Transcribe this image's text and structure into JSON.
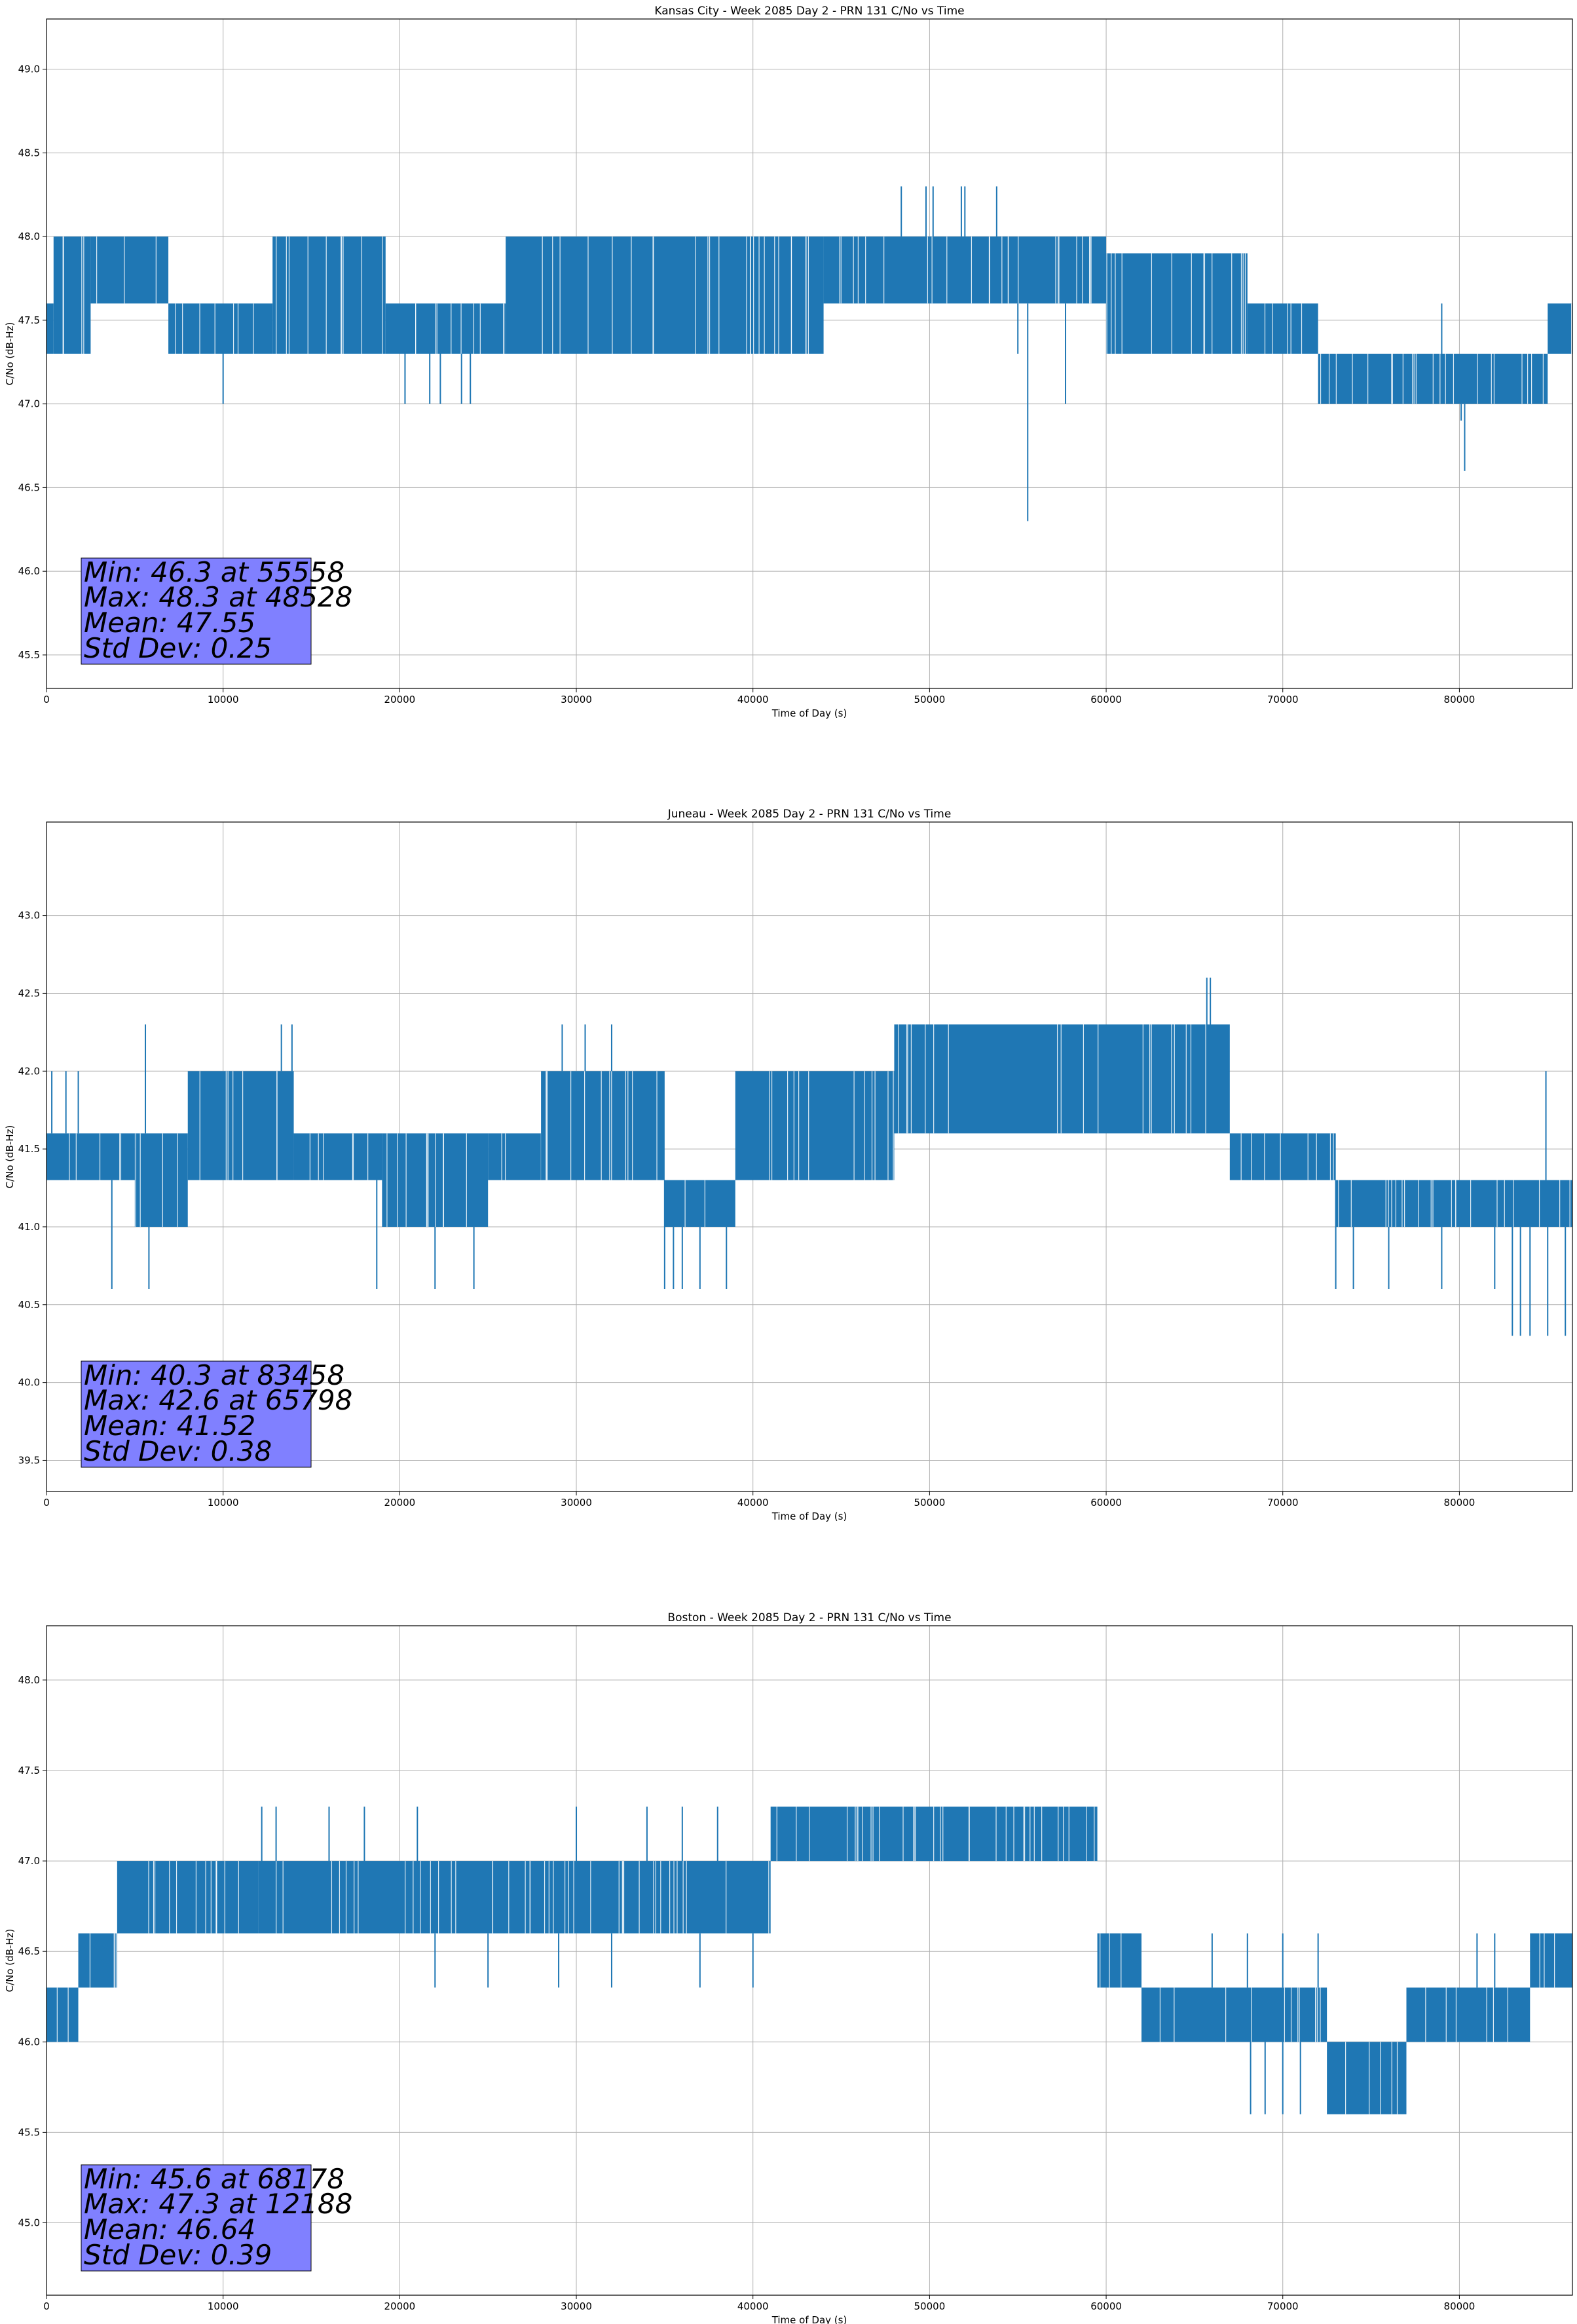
{
  "figure": {
    "colors": {
      "series": "#1f77b4",
      "grid": "#b0b0b0",
      "stats_box": "#8080ff",
      "axes": "#000000",
      "background": "#ffffff"
    }
  },
  "chart_data": [
    {
      "type": "line",
      "title": "Kansas City - Week 2085 Day 2 - PRN 131 C/No vs Time",
      "xlabel": "Time of Day (s)",
      "ylabel": "C/No (dB-Hz)",
      "xlim": [
        0,
        86400
      ],
      "ylim": [
        45.3,
        49.3
      ],
      "xticks": [
        0,
        10000,
        20000,
        30000,
        40000,
        50000,
        60000,
        70000,
        80000
      ],
      "yticks": [
        45.5,
        46.0,
        46.5,
        47.0,
        47.5,
        48.0,
        48.5,
        49.0
      ],
      "grid": true,
      "series": [
        {
          "color": "#1f77b4",
          "bands": [
            {
              "x": [
                0,
                400
              ],
              "lo": 47.3,
              "hi": 47.6
            },
            {
              "x": [
                400,
                2500
              ],
              "lo": 47.3,
              "hi": 48.0
            },
            {
              "x": [
                2500,
                6900
              ],
              "lo": 47.6,
              "hi": 48.0
            },
            {
              "x": [
                6900,
                12800
              ],
              "lo": 47.3,
              "hi": 47.6
            },
            {
              "x": [
                12800,
                19200
              ],
              "lo": 47.3,
              "hi": 48.0
            },
            {
              "x": [
                19200,
                26000
              ],
              "lo": 47.3,
              "hi": 47.6
            },
            {
              "x": [
                26000,
                44000
              ],
              "lo": 47.3,
              "hi": 48.0
            },
            {
              "x": [
                44000,
                60000
              ],
              "lo": 47.6,
              "hi": 48.0
            },
            {
              "x": [
                60000,
                68000
              ],
              "lo": 47.3,
              "hi": 47.9
            },
            {
              "x": [
                68000,
                72000
              ],
              "lo": 47.3,
              "hi": 47.6
            },
            {
              "x": [
                72000,
                85000
              ],
              "lo": 47.0,
              "hi": 47.3
            },
            {
              "x": [
                85000,
                86400
              ],
              "lo": 47.3,
              "hi": 47.6
            }
          ],
          "spikes": [
            {
              "x": 10000,
              "y": 47.0
            },
            {
              "x": 20300,
              "y": 47.0
            },
            {
              "x": 21700,
              "y": 47.0
            },
            {
              "x": 22300,
              "y": 47.0
            },
            {
              "x": 23500,
              "y": 47.0
            },
            {
              "x": 24000,
              "y": 47.0
            },
            {
              "x": 48400,
              "y": 48.3
            },
            {
              "x": 49800,
              "y": 48.3
            },
            {
              "x": 50200,
              "y": 48.3
            },
            {
              "x": 51800,
              "y": 48.3
            },
            {
              "x": 52000,
              "y": 48.3
            },
            {
              "x": 53800,
              "y": 48.3
            },
            {
              "x": 55000,
              "y": 47.3
            },
            {
              "x": 55558,
              "y": 46.3
            },
            {
              "x": 57700,
              "y": 47.0
            },
            {
              "x": 79000,
              "y": 47.6
            },
            {
              "x": 80100,
              "y": 46.9
            },
            {
              "x": 80300,
              "y": 46.6
            }
          ]
        }
      ],
      "stats": [
        "Min: 46.3 at 55558",
        "Max: 48.3 at 48528",
        "Mean: 47.55",
        "Std Dev: 0.25"
      ]
    },
    {
      "type": "line",
      "title": "Juneau - Week 2085 Day 2 - PRN 131 C/No vs Time",
      "xlabel": "Time of Day (s)",
      "ylabel": "C/No (dB-Hz)",
      "xlim": [
        0,
        86400
      ],
      "ylim": [
        39.3,
        43.6
      ],
      "xticks": [
        0,
        10000,
        20000,
        30000,
        40000,
        50000,
        60000,
        70000,
        80000
      ],
      "yticks": [
        39.5,
        40.0,
        40.5,
        41.0,
        41.5,
        42.0,
        42.5,
        43.0
      ],
      "grid": true,
      "series": [
        {
          "color": "#1f77b4",
          "bands": [
            {
              "x": [
                0,
                5000
              ],
              "lo": 41.3,
              "hi": 41.6
            },
            {
              "x": [
                5000,
                8000
              ],
              "lo": 41.0,
              "hi": 41.6
            },
            {
              "x": [
                8000,
                14000
              ],
              "lo": 41.3,
              "hi": 42.0
            },
            {
              "x": [
                14000,
                19000
              ],
              "lo": 41.3,
              "hi": 41.6
            },
            {
              "x": [
                19000,
                25000
              ],
              "lo": 41.0,
              "hi": 41.6
            },
            {
              "x": [
                25000,
                28000
              ],
              "lo": 41.3,
              "hi": 41.6
            },
            {
              "x": [
                28000,
                35000
              ],
              "lo": 41.3,
              "hi": 42.0
            },
            {
              "x": [
                35000,
                39000
              ],
              "lo": 41.0,
              "hi": 41.3
            },
            {
              "x": [
                39000,
                48000
              ],
              "lo": 41.3,
              "hi": 42.0
            },
            {
              "x": [
                48000,
                67000
              ],
              "lo": 41.6,
              "hi": 42.3
            },
            {
              "x": [
                67000,
                73000
              ],
              "lo": 41.3,
              "hi": 41.6
            },
            {
              "x": [
                73000,
                86400
              ],
              "lo": 41.0,
              "hi": 41.3
            }
          ],
          "spikes": [
            {
              "x": 300,
              "y": 42.0
            },
            {
              "x": 1100,
              "y": 42.0
            },
            {
              "x": 1800,
              "y": 42.0
            },
            {
              "x": 3700,
              "y": 40.6
            },
            {
              "x": 5600,
              "y": 42.3
            },
            {
              "x": 5800,
              "y": 40.6
            },
            {
              "x": 13300,
              "y": 42.3
            },
            {
              "x": 13900,
              "y": 42.3
            },
            {
              "x": 18700,
              "y": 40.6
            },
            {
              "x": 22000,
              "y": 40.6
            },
            {
              "x": 24200,
              "y": 40.6
            },
            {
              "x": 29200,
              "y": 42.3
            },
            {
              "x": 30500,
              "y": 42.3
            },
            {
              "x": 32000,
              "y": 42.3
            },
            {
              "x": 35000,
              "y": 40.6
            },
            {
              "x": 35500,
              "y": 40.6
            },
            {
              "x": 36000,
              "y": 40.6
            },
            {
              "x": 37000,
              "y": 40.6
            },
            {
              "x": 38500,
              "y": 40.6
            },
            {
              "x": 65700,
              "y": 42.6
            },
            {
              "x": 65900,
              "y": 42.6
            },
            {
              "x": 73000,
              "y": 40.6
            },
            {
              "x": 74000,
              "y": 40.6
            },
            {
              "x": 76000,
              "y": 40.6
            },
            {
              "x": 79000,
              "y": 40.6
            },
            {
              "x": 82000,
              "y": 40.6
            },
            {
              "x": 83000,
              "y": 40.3
            },
            {
              "x": 83458,
              "y": 40.3
            },
            {
              "x": 84000,
              "y": 40.3
            },
            {
              "x": 85000,
              "y": 40.3
            },
            {
              "x": 86000,
              "y": 40.3
            },
            {
              "x": 84900,
              "y": 42.0
            }
          ]
        }
      ],
      "stats": [
        "Min: 40.3 at 83458",
        "Max: 42.6 at 65798",
        "Mean: 41.52",
        "Std Dev: 0.38"
      ]
    },
    {
      "type": "line",
      "title": "Boston - Week 2085 Day 2 - PRN 131 C/No vs Time",
      "xlabel": "Time of Day (s)",
      "ylabel": "C/No (dB-Hz)",
      "xlim": [
        0,
        86400
      ],
      "ylim": [
        44.6,
        48.3
      ],
      "xticks": [
        0,
        10000,
        20000,
        30000,
        40000,
        50000,
        60000,
        70000,
        80000
      ],
      "yticks": [
        45.0,
        45.5,
        46.0,
        46.5,
        47.0,
        47.5,
        48.0
      ],
      "grid": true,
      "series": [
        {
          "color": "#1f77b4",
          "bands": [
            {
              "x": [
                0,
                1800
              ],
              "lo": 46.0,
              "hi": 46.3
            },
            {
              "x": [
                1800,
                4000
              ],
              "lo": 46.3,
              "hi": 46.6
            },
            {
              "x": [
                4000,
                12000
              ],
              "lo": 46.6,
              "hi": 47.0
            },
            {
              "x": [
                12000,
                41000
              ],
              "lo": 46.6,
              "hi": 47.0
            },
            {
              "x": [
                41000,
                59500
              ],
              "lo": 47.0,
              "hi": 47.3
            },
            {
              "x": [
                59500,
                62000
              ],
              "lo": 46.3,
              "hi": 46.6
            },
            {
              "x": [
                62000,
                72500
              ],
              "lo": 46.0,
              "hi": 46.3
            },
            {
              "x": [
                72500,
                77000
              ],
              "lo": 45.6,
              "hi": 46.0
            },
            {
              "x": [
                77000,
                84000
              ],
              "lo": 46.0,
              "hi": 46.3
            },
            {
              "x": [
                84000,
                86400
              ],
              "lo": 46.3,
              "hi": 46.6
            }
          ],
          "spikes": [
            {
              "x": 12188,
              "y": 47.3
            },
            {
              "x": 13000,
              "y": 47.3
            },
            {
              "x": 16000,
              "y": 47.3
            },
            {
              "x": 18000,
              "y": 47.3
            },
            {
              "x": 21000,
              "y": 47.3
            },
            {
              "x": 30000,
              "y": 47.3
            },
            {
              "x": 34000,
              "y": 47.3
            },
            {
              "x": 36000,
              "y": 47.3
            },
            {
              "x": 38000,
              "y": 47.3
            },
            {
              "x": 22000,
              "y": 46.3
            },
            {
              "x": 25000,
              "y": 46.3
            },
            {
              "x": 29000,
              "y": 46.3
            },
            {
              "x": 32000,
              "y": 46.3
            },
            {
              "x": 37000,
              "y": 46.3
            },
            {
              "x": 40000,
              "y": 46.3
            },
            {
              "x": 68178,
              "y": 45.6
            },
            {
              "x": 69000,
              "y": 45.6
            },
            {
              "x": 70000,
              "y": 45.6
            },
            {
              "x": 71000,
              "y": 45.6
            },
            {
              "x": 66000,
              "y": 46.6
            },
            {
              "x": 68000,
              "y": 46.6
            },
            {
              "x": 70000,
              "y": 46.6
            },
            {
              "x": 72000,
              "y": 46.6
            },
            {
              "x": 81000,
              "y": 46.6
            },
            {
              "x": 82000,
              "y": 46.6
            }
          ]
        }
      ],
      "stats": [
        "Min: 45.6 at 68178",
        "Max: 47.3 at 12188",
        "Mean: 46.64",
        "Std Dev: 0.39"
      ]
    }
  ]
}
